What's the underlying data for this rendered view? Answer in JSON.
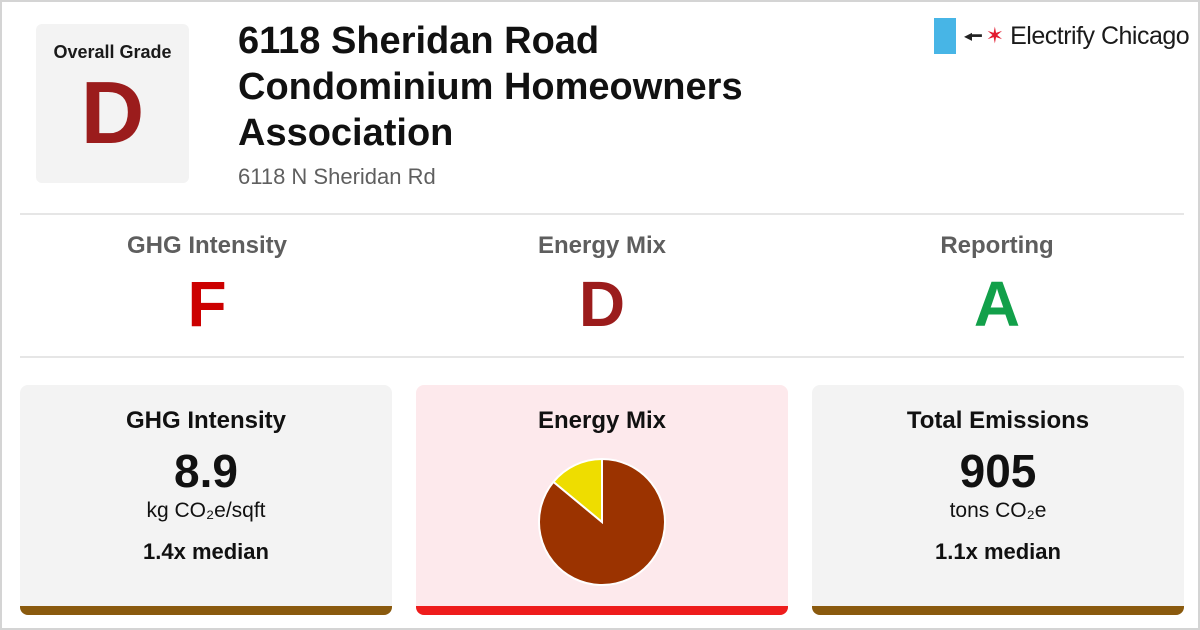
{
  "overall": {
    "label": "Overall Grade",
    "grade": "D",
    "grade_color": "#9b1c1c"
  },
  "building": {
    "name": "6118 Sheridan Road Condominium Homeowners Association",
    "address": "6118 N Sheridan Rd"
  },
  "logo": {
    "brand": "Electrify Chicago",
    "plug_icon": "plug-icon",
    "star_icon": "star-icon"
  },
  "grades": [
    {
      "label": "GHG Intensity",
      "grade": "F",
      "color": "#cc0000"
    },
    {
      "label": "Energy Mix",
      "grade": "D",
      "color": "#9b1c1c"
    },
    {
      "label": "Reporting",
      "grade": "A",
      "color": "#12a04a"
    }
  ],
  "cards": {
    "ghg": {
      "title": "GHG Intensity",
      "value": "8.9",
      "unit": "kg CO₂e/sqft",
      "median": "1.4x median",
      "bar_color": "#8a5a0e"
    },
    "mix": {
      "title": "Energy Mix",
      "bar_color": "#ee1c1c"
    },
    "emissions": {
      "title": "Total Emissions",
      "value": "905",
      "unit": "tons CO₂e",
      "median": "1.1x median",
      "bar_color": "#8a5a0e"
    }
  },
  "chart_data": {
    "type": "pie",
    "slices": [
      {
        "value": 0.86,
        "color": "#9b3300"
      },
      {
        "value": 0.14,
        "color": "#eedd00"
      }
    ]
  }
}
